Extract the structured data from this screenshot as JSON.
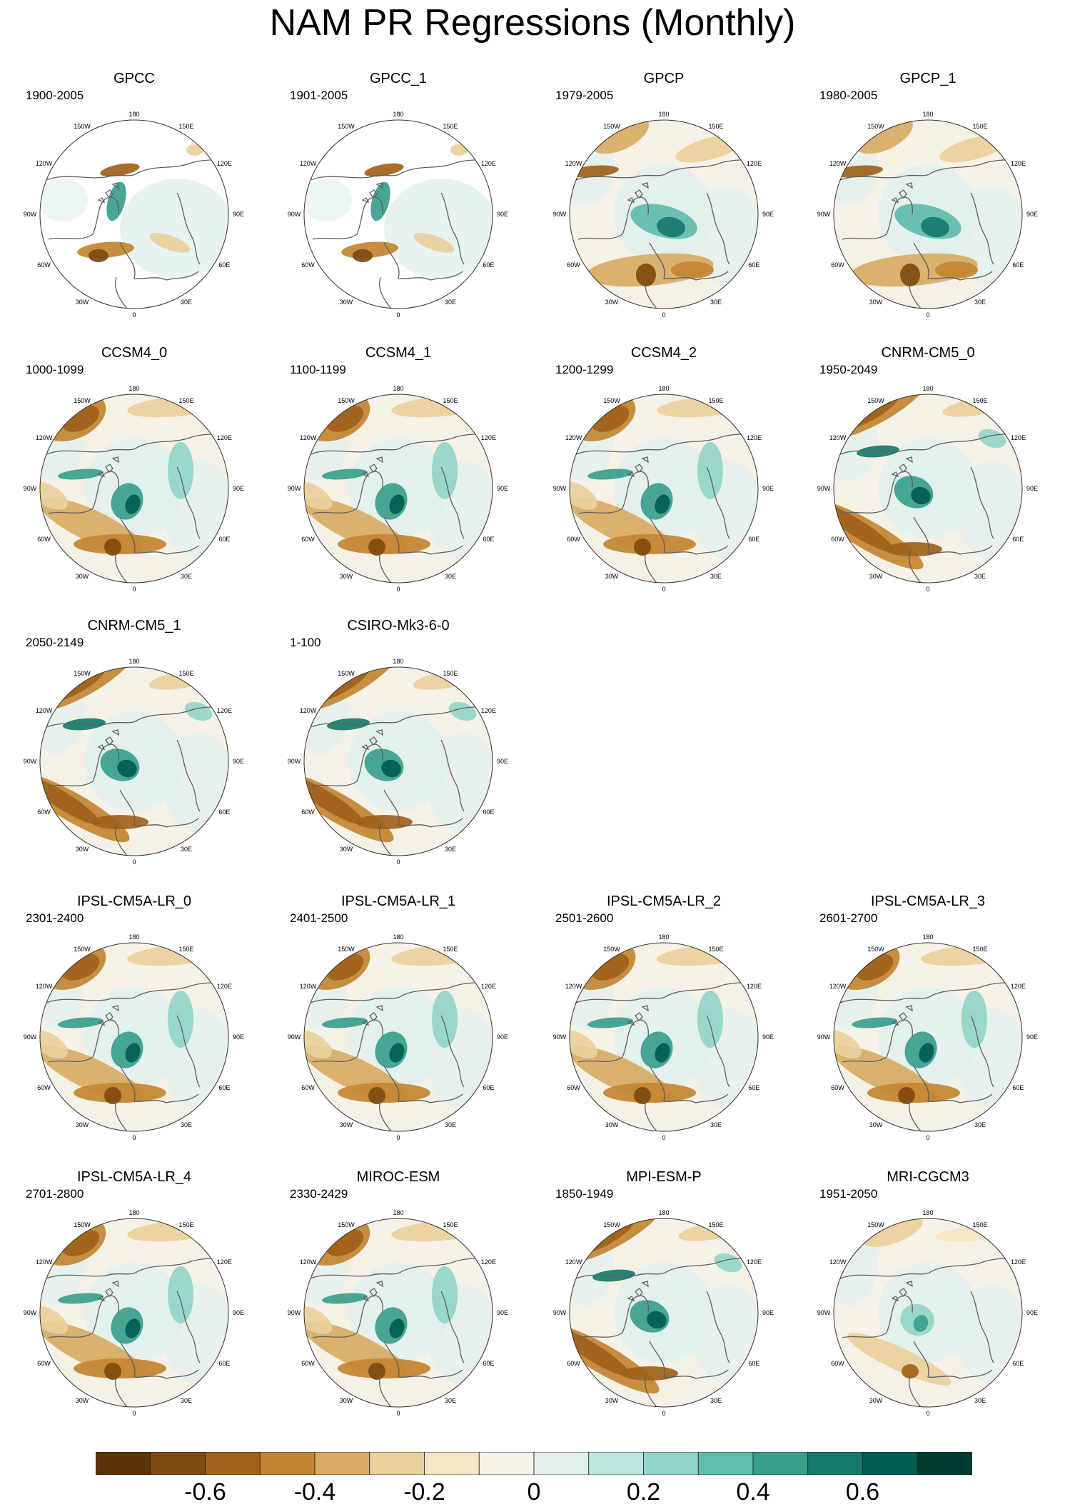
{
  "title": "NAM PR Regressions (Monthly)",
  "map_grid_labels": {
    "top": "180",
    "bottom": "0",
    "left": [
      "150W",
      "120W",
      "90W",
      "60W",
      "30W"
    ],
    "right": [
      "150E",
      "120E",
      "90E",
      "60E",
      "30E"
    ]
  },
  "panels": [
    {
      "name": "GPCC",
      "years": "1900-2005",
      "row": 0,
      "col": 0,
      "style": "obs"
    },
    {
      "name": "GPCC_1",
      "years": "1901-2005",
      "row": 0,
      "col": 1,
      "style": "obs"
    },
    {
      "name": "GPCP",
      "years": "1979-2005",
      "row": 0,
      "col": 2,
      "style": "sat"
    },
    {
      "name": "GPCP_1",
      "years": "1980-2005",
      "row": 0,
      "col": 3,
      "style": "sat"
    },
    {
      "name": "CCSM4_0",
      "years": "1000-1099",
      "row": 1,
      "col": 0,
      "style": "model"
    },
    {
      "name": "CCSM4_1",
      "years": "1100-1199",
      "row": 1,
      "col": 1,
      "style": "model"
    },
    {
      "name": "CCSM4_2",
      "years": "1200-1299",
      "row": 1,
      "col": 2,
      "style": "model"
    },
    {
      "name": "CNRM-CM5_0",
      "years": "1950-2049",
      "row": 1,
      "col": 3,
      "style": "strong"
    },
    {
      "name": "CNRM-CM5_1",
      "years": "2050-2149",
      "row": 2,
      "col": 0,
      "style": "strong"
    },
    {
      "name": "CSIRO-Mk3-6-0",
      "years": "1-100",
      "row": 2,
      "col": 1,
      "style": "strong"
    },
    {
      "name": "IPSL-CM5A-LR_0",
      "years": "2301-2400",
      "row": 3,
      "col": 0,
      "style": "model"
    },
    {
      "name": "IPSL-CM5A-LR_1",
      "years": "2401-2500",
      "row": 3,
      "col": 1,
      "style": "model"
    },
    {
      "name": "IPSL-CM5A-LR_2",
      "years": "2501-2600",
      "row": 3,
      "col": 2,
      "style": "model"
    },
    {
      "name": "IPSL-CM5A-LR_3",
      "years": "2601-2700",
      "row": 3,
      "col": 3,
      "style": "model"
    },
    {
      "name": "IPSL-CM5A-LR_4",
      "years": "2701-2800",
      "row": 4,
      "col": 0,
      "style": "model"
    },
    {
      "name": "MIROC-ESM",
      "years": "2330-2429",
      "row": 4,
      "col": 1,
      "style": "model"
    },
    {
      "name": "MPI-ESM-P",
      "years": "1850-1949",
      "row": 4,
      "col": 2,
      "style": "strong"
    },
    {
      "name": "MRI-CGCM3",
      "years": "1951-2050",
      "row": 4,
      "col": 3,
      "style": "weak"
    }
  ],
  "colorbar": {
    "colors": [
      "#5a3408",
      "#7f4a0f",
      "#a0621a",
      "#c38532",
      "#d8ab64",
      "#e9d09c",
      "#f4e6c6",
      "#f5f1e6",
      "#e1f0ed",
      "#bde6de",
      "#93d5c8",
      "#62bcac",
      "#3a9e8d",
      "#167a6b",
      "#015d51",
      "#003c30"
    ],
    "labels": [
      {
        "text": "-0.6",
        "boundary": 2
      },
      {
        "text": "-0.4",
        "boundary": 4
      },
      {
        "text": "-0.2",
        "boundary": 6
      },
      {
        "text": "0",
        "boundary": 8
      },
      {
        "text": "0.2",
        "boundary": 10
      },
      {
        "text": "0.4",
        "boundary": 12
      },
      {
        "text": "0.6",
        "boundary": 14
      }
    ]
  }
}
